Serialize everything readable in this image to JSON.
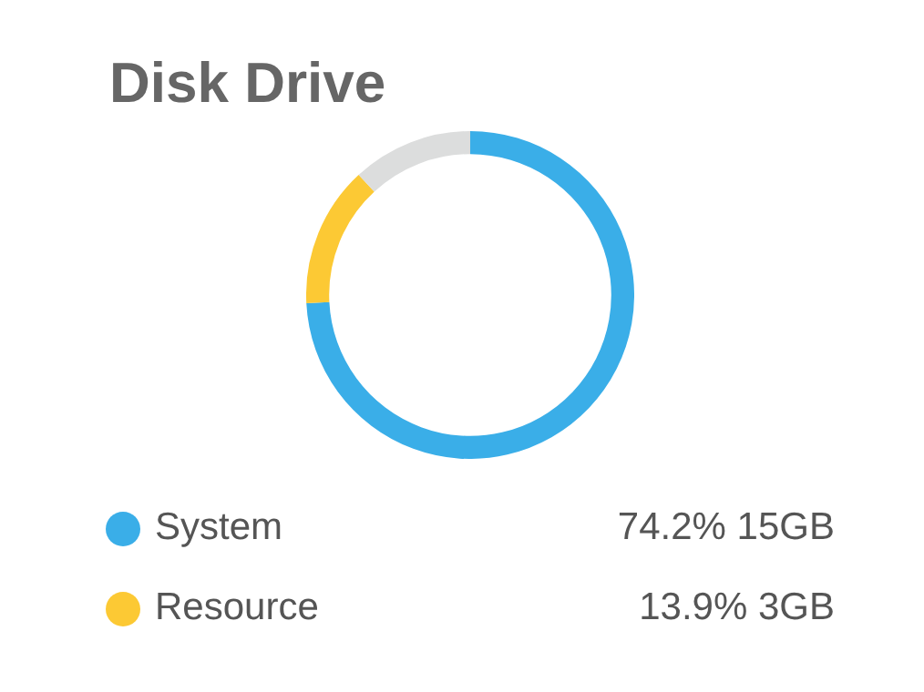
{
  "chart_data": {
    "type": "donut",
    "title": "Disk Drive",
    "categories": [
      "System",
      "Resource",
      null
    ],
    "values": [
      74.2,
      13.9,
      11.9
    ],
    "colors": [
      "#3aaee8",
      "#fcc934",
      "#dcdddd"
    ],
    "value_labels": [
      "74.2% 15GB",
      "13.9% 3GB",
      null
    ],
    "legend": "bottom"
  }
}
